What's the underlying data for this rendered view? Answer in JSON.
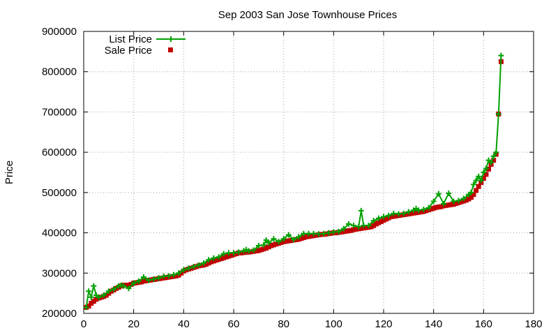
{
  "chart_data": {
    "type": "line",
    "title": "Sep 2003 San Jose Townhouse Prices",
    "xlabel": "",
    "ylabel": "Price",
    "xlim": [
      0,
      180
    ],
    "ylim": [
      200000,
      900000
    ],
    "x_ticks": [
      0,
      20,
      40,
      60,
      80,
      100,
      120,
      140,
      160,
      180
    ],
    "y_ticks": [
      200000,
      300000,
      400000,
      500000,
      600000,
      700000,
      800000,
      900000
    ],
    "grid": true,
    "legend_position": "top-left",
    "series": [
      {
        "name": "List Price",
        "color": "#00a000",
        "style": "line-with-plus-markers",
        "x": [
          1,
          2,
          3,
          4,
          5,
          6,
          8,
          10,
          12,
          14,
          15,
          16,
          18,
          20,
          22,
          24,
          26,
          28,
          30,
          32,
          34,
          36,
          38,
          40,
          42,
          44,
          46,
          48,
          50,
          52,
          54,
          56,
          58,
          60,
          62,
          64,
          65,
          66,
          68,
          70,
          72,
          73,
          74,
          76,
          78,
          80,
          82,
          84,
          86,
          88,
          90,
          92,
          94,
          96,
          98,
          100,
          102,
          104,
          106,
          108,
          110,
          111,
          112,
          114,
          116,
          118,
          120,
          122,
          124,
          126,
          128,
          130,
          132,
          133,
          134,
          136,
          138,
          140,
          142,
          144,
          146,
          148,
          150,
          152,
          154,
          155,
          156,
          157,
          158,
          159,
          160,
          161,
          162,
          163,
          164,
          165,
          166,
          167
        ],
        "values": [
          215000,
          255000,
          240000,
          268000,
          245000,
          240000,
          245000,
          255000,
          260000,
          268000,
          270000,
          268000,
          262000,
          275000,
          280000,
          290000,
          282000,
          285000,
          288000,
          292000,
          293000,
          296000,
          300000,
          308000,
          312000,
          316000,
          320000,
          325000,
          333000,
          337000,
          340000,
          348000,
          350000,
          350000,
          352000,
          355000,
          358000,
          355000,
          357000,
          368000,
          370000,
          382000,
          375000,
          385000,
          378000,
          385000,
          395000,
          383000,
          390000,
          398000,
          398000,
          398000,
          397000,
          398000,
          400000,
          402000,
          403000,
          410000,
          422000,
          418000,
          415000,
          455000,
          418000,
          418000,
          430000,
          436000,
          440000,
          443000,
          448000,
          447000,
          448000,
          452000,
          456000,
          460000,
          456000,
          458000,
          462000,
          478000,
          497000,
          472000,
          498000,
          478000,
          480000,
          485000,
          495000,
          500000,
          520000,
          530000,
          540000,
          530000,
          550000,
          560000,
          580000,
          575000,
          590000,
          600000,
          695000,
          840000
        ]
      },
      {
        "name": "Sale Price",
        "color": "#c00000",
        "style": "square-markers",
        "x": [
          1,
          2,
          3,
          4,
          5,
          6,
          7,
          8,
          9,
          10,
          11,
          12,
          13,
          14,
          15,
          16,
          17,
          18,
          19,
          20,
          21,
          22,
          23,
          24,
          25,
          26,
          27,
          28,
          29,
          30,
          31,
          32,
          33,
          34,
          35,
          36,
          37,
          38,
          39,
          40,
          41,
          42,
          43,
          44,
          45,
          46,
          47,
          48,
          49,
          50,
          51,
          52,
          53,
          54,
          55,
          56,
          57,
          58,
          59,
          60,
          61,
          62,
          63,
          64,
          65,
          66,
          67,
          68,
          69,
          70,
          71,
          72,
          73,
          74,
          75,
          76,
          77,
          78,
          79,
          80,
          81,
          82,
          83,
          84,
          85,
          86,
          87,
          88,
          89,
          90,
          91,
          92,
          93,
          94,
          95,
          96,
          97,
          98,
          99,
          100,
          101,
          102,
          103,
          104,
          105,
          106,
          107,
          108,
          109,
          110,
          111,
          112,
          113,
          114,
          115,
          116,
          117,
          118,
          119,
          120,
          121,
          122,
          123,
          124,
          125,
          126,
          127,
          128,
          129,
          130,
          131,
          132,
          133,
          134,
          135,
          136,
          137,
          138,
          139,
          140,
          141,
          142,
          143,
          144,
          145,
          146,
          147,
          148,
          149,
          150,
          151,
          152,
          153,
          154,
          155,
          156,
          157,
          158,
          159,
          160,
          161,
          162,
          163,
          164,
          165,
          166,
          167
        ],
        "values": [
          215000,
          218000,
          225000,
          230000,
          235000,
          238000,
          240000,
          242000,
          245000,
          250000,
          255000,
          258000,
          262000,
          265000,
          268000,
          270000,
          270000,
          270000,
          272000,
          275000,
          276000,
          277000,
          278000,
          280000,
          281000,
          282000,
          283000,
          284000,
          285000,
          286000,
          287000,
          288000,
          289000,
          290000,
          291000,
          292000,
          293000,
          295000,
          300000,
          305000,
          308000,
          310000,
          312000,
          314000,
          316000,
          318000,
          319000,
          320000,
          322000,
          325000,
          328000,
          330000,
          332000,
          334000,
          336000,
          338000,
          340000,
          342000,
          344000,
          346000,
          348000,
          350000,
          350000,
          351000,
          352000,
          352000,
          353000,
          354000,
          355000,
          356000,
          358000,
          360000,
          362000,
          365000,
          368000,
          370000,
          372000,
          374000,
          376000,
          378000,
          379000,
          380000,
          381000,
          382000,
          383000,
          384000,
          386000,
          388000,
          390000,
          391000,
          392000,
          393000,
          394000,
          395000,
          396000,
          396000,
          397000,
          398000,
          399000,
          400000,
          400000,
          401000,
          402000,
          403000,
          404000,
          405000,
          406000,
          408000,
          409000,
          410000,
          411000,
          412000,
          413000,
          414000,
          415000,
          418000,
          422000,
          425000,
          428000,
          431000,
          434000,
          437000,
          440000,
          441000,
          442000,
          443000,
          444000,
          445000,
          446000,
          447000,
          448000,
          449000,
          450000,
          451000,
          452000,
          453000,
          455000,
          457000,
          459000,
          461000,
          463000,
          464000,
          465000,
          467000,
          468000,
          469000,
          470000,
          471000,
          473000,
          475000,
          477000,
          479000,
          481000,
          484000,
          488000,
          495000,
          505000,
          515000,
          525000,
          535000,
          545000,
          558000,
          570000,
          580000,
          595000,
          695000,
          825000
        ]
      }
    ]
  }
}
